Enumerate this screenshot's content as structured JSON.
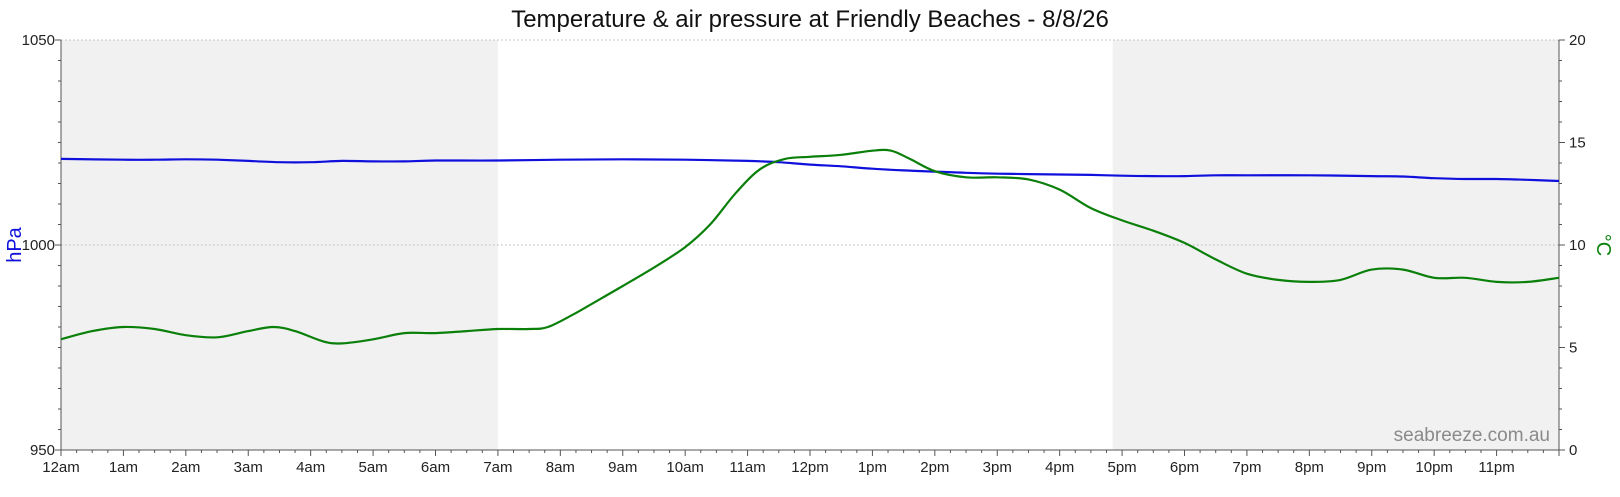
{
  "colors": {
    "pressure": "#1010dd",
    "temperature": "#0a800a",
    "night_shade": "#f1f1f1",
    "grid": "#b5b5b5",
    "axis": "#555555"
  },
  "chart_data": {
    "type": "line",
    "title": "Temperature & air pressure at Friendly Beaches - 8/8/26",
    "watermark": "seabreeze.com.au",
    "x_ticks": [
      "12am",
      "1am",
      "2am",
      "3am",
      "4am",
      "5am",
      "6am",
      "7am",
      "8am",
      "9am",
      "10am",
      "11am",
      "12pm",
      "1pm",
      "2pm",
      "3pm",
      "4pm",
      "5pm",
      "6pm",
      "7pm",
      "8pm",
      "9pm",
      "10pm",
      "11pm"
    ],
    "x_unit": "hours since midnight",
    "xlim": [
      0,
      24
    ],
    "y_left": {
      "label": "hPa",
      "lim": [
        950,
        1050
      ],
      "ticks": [
        "950",
        "1000",
        "1050"
      ],
      "tick_values": [
        950,
        1000,
        1050
      ]
    },
    "y_right": {
      "label": "°C",
      "lim": [
        0,
        20
      ],
      "ticks": [
        "0",
        "5",
        "10",
        "15",
        "20"
      ],
      "tick_values": [
        0,
        5,
        10,
        15,
        20
      ]
    },
    "grid": true,
    "shaded_periods": [
      [
        0,
        7
      ],
      [
        16.85,
        24
      ]
    ],
    "series": [
      {
        "name": "hPa",
        "axis": "left",
        "points": [
          [
            0,
            1021.0
          ],
          [
            1,
            1020.8
          ],
          [
            1.5,
            1020.8
          ],
          [
            2,
            1020.9
          ],
          [
            2.5,
            1020.8
          ],
          [
            3,
            1020.5
          ],
          [
            3.5,
            1020.2
          ],
          [
            4,
            1020.2
          ],
          [
            4.5,
            1020.5
          ],
          [
            5,
            1020.4
          ],
          [
            5.5,
            1020.4
          ],
          [
            6,
            1020.6
          ],
          [
            7,
            1020.6
          ],
          [
            8,
            1020.8
          ],
          [
            9,
            1020.9
          ],
          [
            10,
            1020.8
          ],
          [
            11,
            1020.5
          ],
          [
            11.5,
            1020.2
          ],
          [
            12,
            1019.6
          ],
          [
            12.5,
            1019.2
          ],
          [
            13,
            1018.6
          ],
          [
            13.5,
            1018.2
          ],
          [
            14,
            1017.9
          ],
          [
            14.5,
            1017.6
          ],
          [
            15,
            1017.4
          ],
          [
            15.5,
            1017.3
          ],
          [
            16,
            1017.2
          ],
          [
            16.5,
            1017.1
          ],
          [
            17,
            1016.9
          ],
          [
            17.5,
            1016.8
          ],
          [
            18,
            1016.8
          ],
          [
            18.5,
            1017.0
          ],
          [
            19,
            1017.0
          ],
          [
            20,
            1017.0
          ],
          [
            21,
            1016.8
          ],
          [
            21.5,
            1016.7
          ],
          [
            22,
            1016.3
          ],
          [
            22.5,
            1016.1
          ],
          [
            23,
            1016.1
          ],
          [
            23.5,
            1015.9
          ],
          [
            24,
            1015.6
          ]
        ]
      },
      {
        "name": "°C",
        "axis": "right",
        "points": [
          [
            0,
            5.4
          ],
          [
            0.5,
            5.8
          ],
          [
            1,
            6.0
          ],
          [
            1.5,
            5.9
          ],
          [
            2,
            5.6
          ],
          [
            2.5,
            5.5
          ],
          [
            3,
            5.8
          ],
          [
            3.4,
            6.0
          ],
          [
            3.75,
            5.8
          ],
          [
            4.2,
            5.3
          ],
          [
            4.5,
            5.2
          ],
          [
            5,
            5.4
          ],
          [
            5.5,
            5.7
          ],
          [
            6,
            5.7
          ],
          [
            6.5,
            5.8
          ],
          [
            7,
            5.9
          ],
          [
            7.5,
            5.9
          ],
          [
            7.8,
            6.0
          ],
          [
            8.2,
            6.6
          ],
          [
            8.6,
            7.3
          ],
          [
            9,
            8.0
          ],
          [
            9.5,
            8.9
          ],
          [
            10,
            9.9
          ],
          [
            10.4,
            11.0
          ],
          [
            10.8,
            12.5
          ],
          [
            11.2,
            13.7
          ],
          [
            11.6,
            14.2
          ],
          [
            12,
            14.3
          ],
          [
            12.5,
            14.4
          ],
          [
            13,
            14.6
          ],
          [
            13.3,
            14.6
          ],
          [
            13.6,
            14.2
          ],
          [
            14,
            13.6
          ],
          [
            14.5,
            13.3
          ],
          [
            15,
            13.3
          ],
          [
            15.5,
            13.2
          ],
          [
            16,
            12.7
          ],
          [
            16.5,
            11.8
          ],
          [
            17,
            11.2
          ],
          [
            17.5,
            10.7
          ],
          [
            18,
            10.1
          ],
          [
            18.5,
            9.3
          ],
          [
            19,
            8.6
          ],
          [
            19.5,
            8.3
          ],
          [
            20,
            8.2
          ],
          [
            20.5,
            8.3
          ],
          [
            21,
            8.8
          ],
          [
            21.5,
            8.8
          ],
          [
            22,
            8.4
          ],
          [
            22.5,
            8.4
          ],
          [
            23,
            8.2
          ],
          [
            23.5,
            8.2
          ],
          [
            24,
            8.4
          ]
        ]
      }
    ]
  }
}
